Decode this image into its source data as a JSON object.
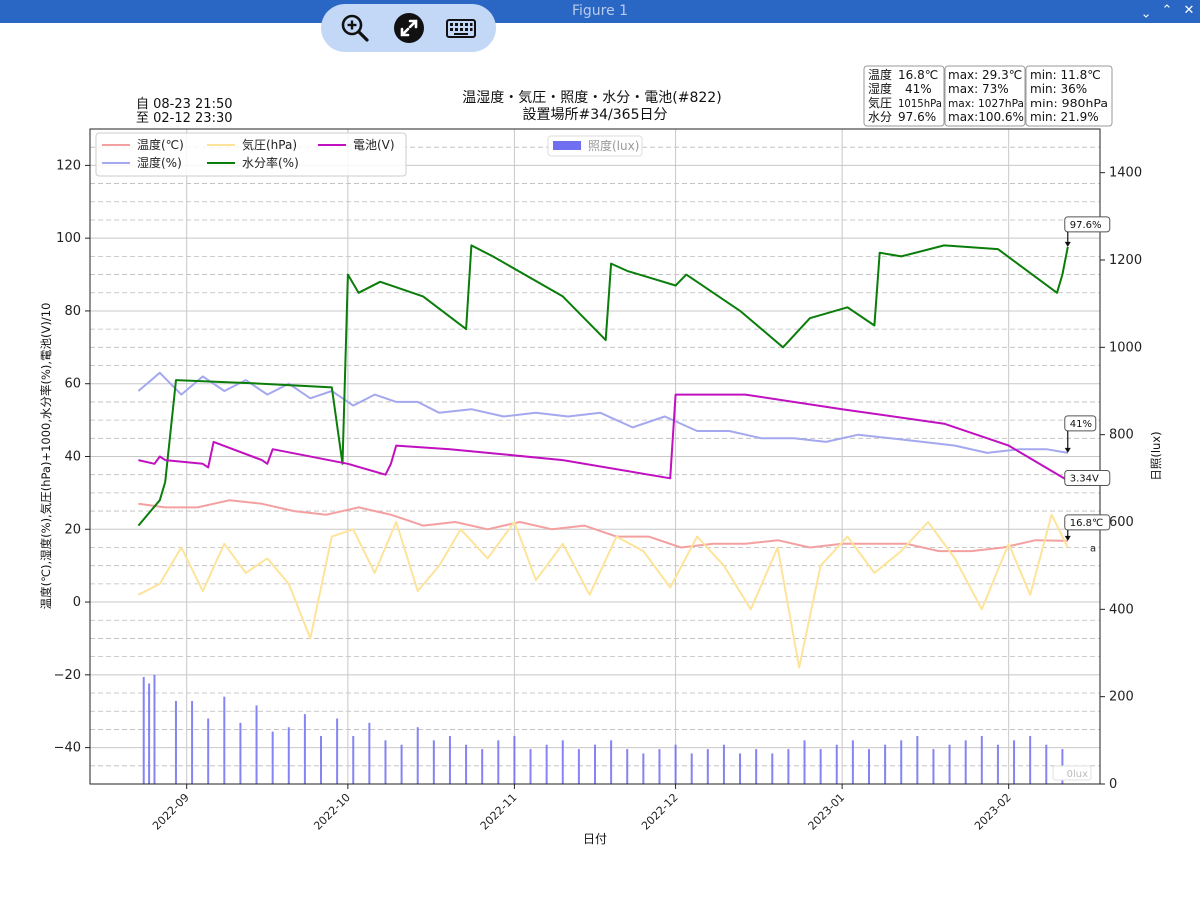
{
  "window": {
    "title": "Figure 1",
    "controls": [
      "⌃",
      "⌃",
      "✕"
    ]
  },
  "toolbar": {
    "icons": [
      "zoom-icon",
      "pan-icon",
      "keyboard-icon"
    ]
  },
  "colors": {
    "temperature": "#f4a0a0",
    "humidity": "#a4a8ee",
    "pressure": "#fde49a",
    "moisture": "#0a7d0a",
    "battery": "#c010c0",
    "lux": "#6f6ff0",
    "titlebar": "#2a66c4",
    "toolbar": "#c3d7f7"
  },
  "chart_data": {
    "type": "line",
    "title": "温湿度・気圧・照度・水分・電池(#822)",
    "subtitle": "設置場所#34/365日分",
    "period": {
      "from": "自 08-23 21:50",
      "to": "至 02-12 23:30"
    },
    "xlabel": "日付",
    "ylabel": "温度(℃),湿度(%),気圧(hPa)+1000,水分率(%),電池(V)/10",
    "y2label": "日照(lux)",
    "xlim": [
      "2022-08-14",
      "2023-02-18"
    ],
    "ylim": [
      -50,
      130
    ],
    "y2lim": [
      0,
      1500
    ],
    "x_ticks": [
      {
        "date": "2022-09-01",
        "label": "2022-09"
      },
      {
        "date": "2022-10-01",
        "label": "2022-10"
      },
      {
        "date": "2022-11-01",
        "label": "2022-11"
      },
      {
        "date": "2022-12-01",
        "label": "2022-12"
      },
      {
        "date": "2023-01-01",
        "label": "2023-01"
      },
      {
        "date": "2023-02-01",
        "label": "2023-02"
      }
    ],
    "y_ticks": [
      {
        "v": 120,
        "label": "120"
      },
      {
        "v": 100,
        "label": "100"
      },
      {
        "v": 80,
        "label": "80"
      },
      {
        "v": 60,
        "label": "60"
      },
      {
        "v": 40,
        "label": "40"
      },
      {
        "v": 20,
        "label": "20"
      },
      {
        "v": 0,
        "label": "0"
      },
      {
        "v": -20,
        "label": "−20"
      },
      {
        "v": -40,
        "label": "−40"
      }
    ],
    "y2_ticks": [
      {
        "v": 1400,
        "label": "1400"
      },
      {
        "v": 1200,
        "label": "1200"
      },
      {
        "v": 1000,
        "label": "1000"
      },
      {
        "v": 800,
        "label": "800"
      },
      {
        "v": 600,
        "label": "600"
      },
      {
        "v": 400,
        "label": "400"
      },
      {
        "v": 200,
        "label": "200"
      },
      {
        "v": 0,
        "label": "0"
      }
    ],
    "grid": true,
    "legend": {
      "placement": "top-left",
      "entries": [
        {
          "key": "temperature",
          "label": "温度(℃)"
        },
        {
          "key": "humidity",
          "label": "湿度(%)"
        },
        {
          "key": "pressure",
          "label": "気圧(hPa)"
        },
        {
          "key": "moisture",
          "label": "水分率(%)"
        },
        {
          "key": "battery",
          "label": "電池(V)"
        }
      ],
      "lux_label": "照度(lux)"
    },
    "stats": [
      {
        "name": "温度",
        "current": "16.8℃",
        "max": "max: 29.3℃",
        "min": "min: 11.8℃"
      },
      {
        "name": "湿度",
        "current": "41%",
        "max": "max:   73%",
        "min": "min:   36%"
      },
      {
        "name": "気圧",
        "current": "1015hPa",
        "max": "max: 1027hPa",
        "min": "min:  980hPa"
      },
      {
        "name": "水分",
        "current": "97.6%",
        "max": "max:100.6%",
        "min": "min: 21.9%"
      }
    ],
    "annotations": [
      {
        "series": "moisture",
        "text": "97.6%",
        "y": 97.6
      },
      {
        "series": "humidity",
        "text": "41%",
        "y": 41
      },
      {
        "series": "battery",
        "text": "3.34V",
        "y": 33.4
      },
      {
        "series": "temperature",
        "text": "16.8℃",
        "y": 16.8
      },
      {
        "series": "pressure",
        "text": "a",
        "y": 15
      },
      {
        "series": "lux",
        "text": "0lux",
        "y2": 0
      }
    ],
    "series": [
      {
        "key": "temperature",
        "name": "温度(℃)",
        "x": [
          "2022-08-23",
          "2022-08-28",
          "2022-09-03",
          "2022-09-09",
          "2022-09-15",
          "2022-09-21",
          "2022-09-27",
          "2022-10-03",
          "2022-10-09",
          "2022-10-15",
          "2022-10-21",
          "2022-10-27",
          "2022-11-02",
          "2022-11-08",
          "2022-11-14",
          "2022-11-20",
          "2022-11-26",
          "2022-12-02",
          "2022-12-08",
          "2022-12-14",
          "2022-12-20",
          "2022-12-26",
          "2023-01-01",
          "2023-01-07",
          "2023-01-13",
          "2023-01-19",
          "2023-01-25",
          "2023-01-31",
          "2023-02-06",
          "2023-02-12"
        ],
        "y": [
          27,
          26,
          26,
          28,
          27,
          25,
          24,
          26,
          24,
          21,
          22,
          20,
          22,
          20,
          21,
          18,
          18,
          15,
          16,
          16,
          17,
          15,
          16,
          16,
          16,
          14,
          14,
          15,
          17,
          16.8
        ]
      },
      {
        "key": "humidity",
        "name": "湿度(%)",
        "x": [
          "2022-08-23",
          "2022-08-27",
          "2022-08-31",
          "2022-09-04",
          "2022-09-08",
          "2022-09-12",
          "2022-09-16",
          "2022-09-20",
          "2022-09-24",
          "2022-09-28",
          "2022-10-02",
          "2022-10-06",
          "2022-10-10",
          "2022-10-14",
          "2022-10-18",
          "2022-10-24",
          "2022-10-30",
          "2022-11-05",
          "2022-11-11",
          "2022-11-17",
          "2022-11-23",
          "2022-11-29",
          "2022-12-05",
          "2022-12-11",
          "2022-12-17",
          "2022-12-23",
          "2022-12-29",
          "2023-01-04",
          "2023-01-10",
          "2023-01-16",
          "2023-01-22",
          "2023-01-28",
          "2023-02-03",
          "2023-02-08",
          "2023-02-12"
        ],
        "y": [
          58,
          63,
          57,
          62,
          58,
          61,
          57,
          60,
          56,
          58,
          54,
          57,
          55,
          55,
          52,
          53,
          51,
          52,
          51,
          52,
          48,
          51,
          47,
          47,
          45,
          45,
          44,
          46,
          45,
          44,
          43,
          41,
          42,
          42,
          41
        ]
      },
      {
        "key": "pressure",
        "name": "気圧(hPa)",
        "x": [
          "2022-08-23",
          "2022-08-27",
          "2022-08-31",
          "2022-09-04",
          "2022-09-08",
          "2022-09-12",
          "2022-09-16",
          "2022-09-20",
          "2022-09-24",
          "2022-09-28",
          "2022-10-02",
          "2022-10-06",
          "2022-10-10",
          "2022-10-14",
          "2022-10-18",
          "2022-10-22",
          "2022-10-27",
          "2022-11-01",
          "2022-11-05",
          "2022-11-10",
          "2022-11-15",
          "2022-11-20",
          "2022-11-25",
          "2022-11-30",
          "2022-12-05",
          "2022-12-10",
          "2022-12-15",
          "2022-12-20",
          "2022-12-24",
          "2022-12-28",
          "2023-01-02",
          "2023-01-07",
          "2023-01-12",
          "2023-01-17",
          "2023-01-22",
          "2023-01-27",
          "2023-02-01",
          "2023-02-05",
          "2023-02-09",
          "2023-02-12"
        ],
        "y": [
          2,
          5,
          15,
          3,
          16,
          8,
          12,
          5,
          -10,
          18,
          20,
          8,
          22,
          3,
          10,
          20,
          12,
          22,
          6,
          16,
          2,
          18,
          14,
          4,
          18,
          10,
          -2,
          15,
          -18,
          10,
          18,
          8,
          14,
          22,
          12,
          -2,
          16,
          2,
          24,
          15
        ]
      },
      {
        "key": "moisture",
        "name": "水分率(%)",
        "x": [
          "2022-08-23",
          "2022-08-27",
          "2022-08-28",
          "2022-08-30",
          "2022-09-15",
          "2022-09-28",
          "2022-09-30",
          "2022-10-01",
          "2022-10-03",
          "2022-10-07",
          "2022-10-15",
          "2022-10-23",
          "2022-10-24",
          "2022-10-28",
          "2022-11-10",
          "2022-11-18",
          "2022-11-19",
          "2022-11-22",
          "2022-12-01",
          "2022-12-03",
          "2022-12-13",
          "2022-12-21",
          "2022-12-26",
          "2023-01-02",
          "2023-01-07",
          "2023-01-08",
          "2023-01-12",
          "2023-01-20",
          "2023-01-30",
          "2023-02-10",
          "2023-02-11",
          "2023-02-12"
        ],
        "y": [
          21,
          28,
          33,
          61,
          60,
          59,
          38,
          90,
          85,
          88,
          84,
          75,
          98,
          95,
          84,
          72,
          93,
          91,
          87,
          90,
          80,
          70,
          78,
          81,
          76,
          96,
          95,
          98,
          97,
          85,
          90,
          97.6
        ]
      },
      {
        "key": "battery",
        "name": "電池(V)",
        "x": [
          "2022-08-23",
          "2022-08-26",
          "2022-08-27",
          "2022-08-28",
          "2022-09-04",
          "2022-09-05",
          "2022-09-06",
          "2022-09-15",
          "2022-09-16",
          "2022-09-17",
          "2022-10-01",
          "2022-10-08",
          "2022-10-09",
          "2022-10-10",
          "2022-10-20",
          "2022-11-10",
          "2022-11-30",
          "2022-12-01",
          "2022-12-14",
          "2023-01-01",
          "2023-01-20",
          "2023-02-01",
          "2023-02-12"
        ],
        "y": [
          39,
          38,
          40,
          39,
          38,
          37,
          44,
          39,
          38,
          42,
          38,
          35,
          38,
          43,
          42,
          39,
          34,
          57,
          57,
          53,
          49,
          43,
          33.4
        ]
      }
    ],
    "lux_bars": {
      "x": [
        "2022-08-24",
        "2022-08-25",
        "2022-08-26",
        "2022-08-30",
        "2022-09-02",
        "2022-09-05",
        "2022-09-08",
        "2022-09-11",
        "2022-09-14",
        "2022-09-17",
        "2022-09-20",
        "2022-09-23",
        "2022-09-26",
        "2022-09-29",
        "2022-10-02",
        "2022-10-05",
        "2022-10-08",
        "2022-10-11",
        "2022-10-14",
        "2022-10-17",
        "2022-10-20",
        "2022-10-23",
        "2022-10-26",
        "2022-10-29",
        "2022-11-01",
        "2022-11-04",
        "2022-11-07",
        "2022-11-10",
        "2022-11-13",
        "2022-11-16",
        "2022-11-19",
        "2022-11-22",
        "2022-11-25",
        "2022-11-28",
        "2022-12-01",
        "2022-12-04",
        "2022-12-07",
        "2022-12-10",
        "2022-12-13",
        "2022-12-16",
        "2022-12-19",
        "2022-12-22",
        "2022-12-25",
        "2022-12-28",
        "2022-12-31",
        "2023-01-03",
        "2023-01-06",
        "2023-01-09",
        "2023-01-12",
        "2023-01-15",
        "2023-01-18",
        "2023-01-21",
        "2023-01-24",
        "2023-01-27",
        "2023-01-30",
        "2023-02-02",
        "2023-02-05",
        "2023-02-08",
        "2023-02-11"
      ],
      "y2": [
        245,
        230,
        250,
        190,
        190,
        150,
        200,
        140,
        180,
        120,
        130,
        160,
        110,
        150,
        110,
        140,
        100,
        90,
        130,
        100,
        110,
        90,
        80,
        100,
        110,
        80,
        90,
        100,
        80,
        90,
        100,
        80,
        70,
        80,
        90,
        70,
        80,
        90,
        70,
        80,
        70,
        80,
        100,
        80,
        90,
        100,
        80,
        90,
        100,
        110,
        80,
        90,
        100,
        110,
        90,
        100,
        110,
        90,
        80
      ]
    }
  }
}
